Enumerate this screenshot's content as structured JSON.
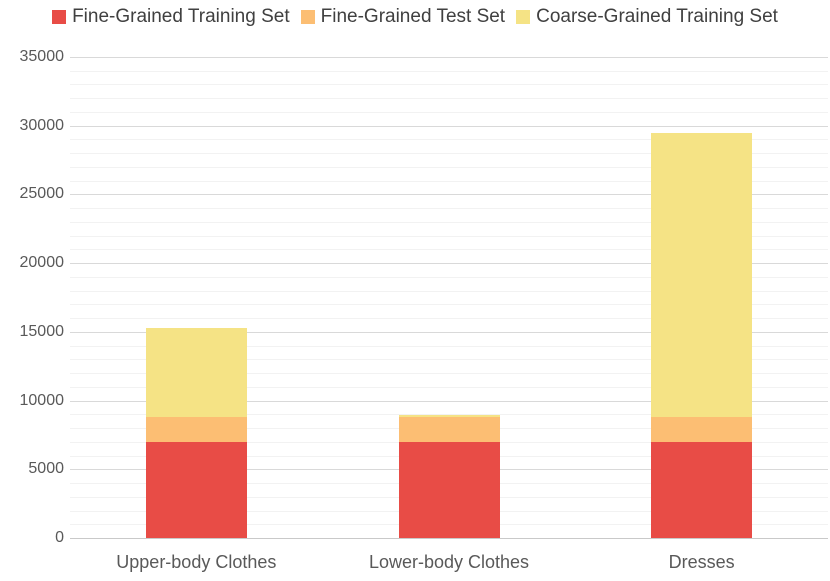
{
  "chart_data": {
    "type": "bar",
    "stacked": true,
    "title": "",
    "categories": [
      "Upper-body Clothes",
      "Lower-body Clothes",
      "Dresses"
    ],
    "series": [
      {
        "name": "Fine-Grained Training Set",
        "color": "#E84C46",
        "values": [
          7000,
          7000,
          7000
        ]
      },
      {
        "name": "Fine-Grained Test Set",
        "color": "#FCBE73",
        "values": [
          1800,
          1800,
          1800
        ]
      },
      {
        "name": "Coarse-Grained Training Set",
        "color": "#F5E385",
        "values": [
          6500,
          150,
          20700
        ]
      }
    ],
    "stack_totals": [
      15300,
      8950,
      29500
    ],
    "ylim": [
      0,
      35000
    ],
    "y_major_step": 5000,
    "y_minor_step": 1000,
    "y_ticks": [
      0,
      5000,
      10000,
      15000,
      20000,
      25000,
      30000,
      35000
    ],
    "legend_position": "top",
    "grid": true
  },
  "colors": {
    "background": "#FFFFFF",
    "legend_text": "#404040",
    "axis_label": "#595959",
    "gridline_major": "#D9D9D9",
    "gridline_minor": "#F2F2F2",
    "axis_line": "#C9C9C9"
  }
}
